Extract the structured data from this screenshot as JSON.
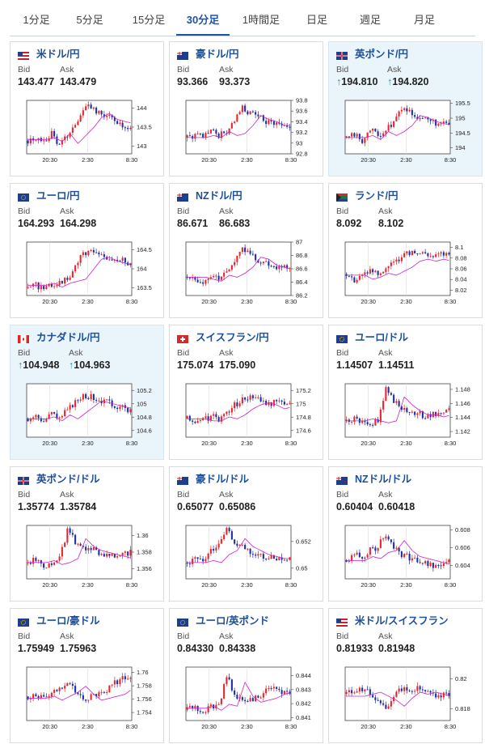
{
  "tabs": [
    {
      "label": "1分足",
      "active": false
    },
    {
      "label": "5分足",
      "active": false
    },
    {
      "label": "15分足",
      "active": false
    },
    {
      "label": "30分足",
      "active": true
    },
    {
      "label": "1時間足",
      "active": false
    },
    {
      "label": "日足",
      "active": false
    },
    {
      "label": "週足",
      "active": false
    },
    {
      "label": "月足",
      "active": false
    }
  ],
  "quote_labels": {
    "bid": "Bid",
    "ask": "Ask"
  },
  "x_axis_labels": [
    "20:30",
    "2:30",
    "8:30"
  ],
  "colors": {
    "up": "#e8242c",
    "down": "#1f2fa0",
    "ma": "#cc22cc",
    "accent": "#2052a6",
    "arrow": "#1a9aa0"
  },
  "cards": [
    {
      "title": "米ドル/円",
      "flag": "us",
      "bid": "143.477",
      "ask": "143.479",
      "highlight": false,
      "arrow": false,
      "chart_data": {
        "type": "candlestick",
        "y_ticks": [
          144,
          143.5,
          143
        ],
        "ylim": [
          142.8,
          144.2
        ],
        "shape": [
          0.25,
          0.3,
          0.2,
          0.4,
          0.15,
          0.35,
          0.55,
          0.8,
          0.9,
          0.75,
          0.7,
          0.65,
          0.55,
          0.5
        ]
      }
    },
    {
      "title": "豪ドル/円",
      "flag": "au",
      "bid": "93.366",
      "ask": "93.373",
      "highlight": false,
      "arrow": false,
      "chart_data": {
        "type": "candlestick",
        "y_ticks": [
          93.8,
          93.6,
          93.4,
          93.2,
          93,
          92.8
        ],
        "ylim": [
          92.8,
          93.8
        ],
        "shape": [
          0.3,
          0.35,
          0.3,
          0.45,
          0.35,
          0.4,
          0.6,
          0.85,
          0.75,
          0.7,
          0.6,
          0.6,
          0.55,
          0.5
        ]
      }
    },
    {
      "title": "英ポンド/円",
      "flag": "gb",
      "bid": "194.810",
      "ask": "194.820",
      "highlight": true,
      "arrow": true,
      "chart_data": {
        "type": "candlestick",
        "y_ticks": [
          195.5,
          195,
          194.5,
          194
        ],
        "ylim": [
          193.8,
          195.6
        ],
        "shape": [
          0.3,
          0.35,
          0.25,
          0.45,
          0.35,
          0.45,
          0.6,
          0.85,
          0.8,
          0.7,
          0.65,
          0.6,
          0.55,
          0.55
        ]
      }
    },
    {
      "title": "ユーロ/円",
      "flag": "eu",
      "bid": "164.293",
      "ask": "164.298",
      "highlight": false,
      "arrow": false,
      "chart_data": {
        "type": "candlestick",
        "y_ticks": [
          164.5,
          164,
          163.5
        ],
        "ylim": [
          163.3,
          164.7
        ],
        "shape": [
          0.15,
          0.2,
          0.1,
          0.2,
          0.25,
          0.3,
          0.55,
          0.8,
          0.85,
          0.75,
          0.7,
          0.65,
          0.65,
          0.6
        ]
      }
    },
    {
      "title": "NZドル/円",
      "flag": "nz",
      "bid": "86.671",
      "ask": "86.683",
      "highlight": false,
      "arrow": false,
      "chart_data": {
        "type": "candlestick",
        "y_ticks": [
          87,
          86.8,
          86.6,
          86.4,
          86.2
        ],
        "ylim": [
          86.2,
          87
        ],
        "shape": [
          0.35,
          0.3,
          0.25,
          0.4,
          0.35,
          0.45,
          0.6,
          0.85,
          0.8,
          0.65,
          0.6,
          0.55,
          0.55,
          0.5
        ]
      }
    },
    {
      "title": "ランド/円",
      "flag": "za",
      "bid": "8.092",
      "ask": "8.102",
      "highlight": false,
      "arrow": false,
      "chart_data": {
        "type": "candlestick",
        "y_ticks": [
          8.1,
          8.08,
          8.06,
          8.04,
          8.02
        ],
        "ylim": [
          8.01,
          8.11
        ],
        "shape": [
          0.4,
          0.3,
          0.35,
          0.45,
          0.4,
          0.5,
          0.6,
          0.75,
          0.8,
          0.75,
          0.8,
          0.75,
          0.8,
          0.75
        ]
      }
    },
    {
      "title": "カナダドル/円",
      "flag": "ca",
      "bid": "104.948",
      "ask": "104.963",
      "highlight": true,
      "arrow": true,
      "chart_data": {
        "type": "candlestick",
        "y_ticks": [
          105.2,
          105,
          104.8,
          104.6
        ],
        "ylim": [
          104.5,
          105.3
        ],
        "shape": [
          0.35,
          0.4,
          0.3,
          0.45,
          0.35,
          0.5,
          0.65,
          0.8,
          0.75,
          0.7,
          0.65,
          0.6,
          0.55,
          0.5
        ]
      }
    },
    {
      "title": "スイスフラン/円",
      "flag": "ch",
      "bid": "175.074",
      "ask": "175.090",
      "highlight": false,
      "arrow": false,
      "chart_data": {
        "type": "candlestick",
        "y_ticks": [
          175.2,
          175,
          174.8,
          174.6
        ],
        "ylim": [
          174.5,
          175.3
        ],
        "shape": [
          0.35,
          0.3,
          0.3,
          0.4,
          0.35,
          0.45,
          0.6,
          0.7,
          0.75,
          0.7,
          0.6,
          0.65,
          0.7,
          0.6
        ]
      }
    },
    {
      "title": "ユーロ/ドル",
      "flag": "euus",
      "bid": "1.14507",
      "ask": "1.14511",
      "highlight": false,
      "arrow": false,
      "chart_data": {
        "type": "candlestick",
        "y_ticks": [
          1.148,
          1.146,
          1.144,
          1.142
        ],
        "ylim": [
          1.1412,
          1.1488
        ],
        "shape": [
          0.3,
          0.35,
          0.3,
          0.25,
          0.3,
          0.9,
          0.7,
          0.55,
          0.45,
          0.45,
          0.4,
          0.45,
          0.45,
          0.5
        ]
      }
    },
    {
      "title": "英ポンド/ドル",
      "flag": "gbus",
      "bid": "1.35774",
      "ask": "1.35784",
      "highlight": false,
      "arrow": false,
      "chart_data": {
        "type": "candlestick",
        "y_ticks": [
          1.36,
          1.358,
          1.356
        ],
        "ylim": [
          1.3548,
          1.3612
        ],
        "shape": [
          0.3,
          0.35,
          0.25,
          0.3,
          0.4,
          0.9,
          0.7,
          0.6,
          0.55,
          0.5,
          0.45,
          0.4,
          0.45,
          0.5
        ]
      }
    },
    {
      "title": "豪ドル/ドル",
      "flag": "auus",
      "bid": "0.65077",
      "ask": "0.65086",
      "highlight": false,
      "arrow": false,
      "chart_data": {
        "type": "candlestick",
        "y_ticks": [
          0.652,
          0.65
        ],
        "ylim": [
          0.6492,
          0.6532
        ],
        "shape": [
          0.3,
          0.35,
          0.3,
          0.5,
          0.6,
          0.9,
          0.7,
          0.6,
          0.5,
          0.45,
          0.4,
          0.4,
          0.4,
          0.35
        ]
      }
    },
    {
      "title": "NZドル/ドル",
      "flag": "nzus",
      "bid": "0.60404",
      "ask": "0.60418",
      "highlight": false,
      "arrow": false,
      "chart_data": {
        "type": "candlestick",
        "y_ticks": [
          0.608,
          0.606,
          0.604
        ],
        "ylim": [
          0.6025,
          0.6085
        ],
        "shape": [
          0.35,
          0.45,
          0.4,
          0.55,
          0.6,
          0.85,
          0.6,
          0.45,
          0.4,
          0.35,
          0.3,
          0.25,
          0.25,
          0.3
        ]
      }
    },
    {
      "title": "ユーロ/豪ドル",
      "flag": "euau",
      "bid": "1.75949",
      "ask": "1.75963",
      "highlight": false,
      "arrow": false,
      "chart_data": {
        "type": "candlestick",
        "y_ticks": [
          1.76,
          1.758,
          1.756,
          1.754
        ],
        "ylim": [
          1.7528,
          1.7608
        ],
        "shape": [
          0.45,
          0.5,
          0.4,
          0.5,
          0.6,
          0.75,
          0.55,
          0.4,
          0.45,
          0.5,
          0.55,
          0.7,
          0.8,
          0.85
        ]
      }
    },
    {
      "title": "ユーロ/英ポンド",
      "flag": "eugb",
      "bid": "0.84330",
      "ask": "0.84338",
      "highlight": false,
      "arrow": false,
      "chart_data": {
        "type": "candlestick",
        "y_ticks": [
          0.844,
          0.843,
          0.842,
          0.841
        ],
        "ylim": [
          0.8408,
          0.8446
        ],
        "shape": [
          0.2,
          0.25,
          0.15,
          0.3,
          0.25,
          0.85,
          0.5,
          0.35,
          0.4,
          0.45,
          0.55,
          0.6,
          0.55,
          0.55
        ]
      }
    },
    {
      "title": "米ドル/スイスフラン",
      "flag": "usch",
      "bid": "0.81933",
      "ask": "0.81948",
      "highlight": false,
      "arrow": false,
      "chart_data": {
        "type": "candlestick",
        "y_ticks": [
          0.82,
          0.818
        ],
        "ylim": [
          0.8172,
          0.8208
        ],
        "shape": [
          0.5,
          0.55,
          0.6,
          0.5,
          0.4,
          0.25,
          0.45,
          0.6,
          0.55,
          0.6,
          0.55,
          0.5,
          0.45,
          0.5
        ]
      }
    }
  ]
}
